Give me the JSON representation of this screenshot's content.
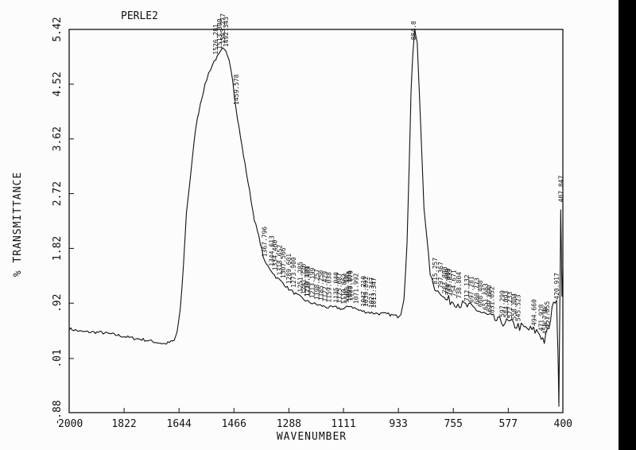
{
  "chart_data": {
    "type": "line",
    "title": "PERLE2",
    "xlabel": "WAVENUMBER",
    "ylabel": "% TRANSMITTANCE",
    "xlim": [
      2000,
      400
    ],
    "ylim": [
      -0.88,
      5.42
    ],
    "x_ticks": [
      "2000",
      "1822",
      "1644",
      "1466",
      "1288",
      "1111",
      "933",
      "755",
      "577",
      "400"
    ],
    "y_ticks": [
      "-.88",
      ".01",
      ".92",
      "1.82",
      "2.72",
      "3.62",
      "4.52",
      "5.42"
    ],
    "series": [
      {
        "x": [
          2000,
          1960,
          1900,
          1850,
          1800,
          1760,
          1720,
          1690,
          1660,
          1650,
          1640,
          1630,
          1620,
          1605,
          1590,
          1575,
          1560,
          1548,
          1530,
          1515,
          1503,
          1492,
          1482,
          1470,
          1459,
          1440,
          1420,
          1400,
          1380,
          1367,
          1344,
          1330,
          1307,
          1288,
          1260,
          1230,
          1200,
          1185,
          1160,
          1135,
          1111,
          1090,
          1060,
          1030,
          1000,
          970,
          950,
          935,
          925,
          915,
          905,
          898,
          892,
          886,
          880,
          872,
          862,
          850,
          830,
          815,
          800,
          780,
          755,
          730,
          700,
          680,
          660,
          640,
          610,
          577,
          550,
          520,
          480,
          460,
          440,
          430,
          420,
          416,
          413,
          409,
          407,
          403,
          400
        ],
        "y": [
          0.5,
          0.45,
          0.44,
          0.4,
          0.35,
          0.32,
          0.28,
          0.25,
          0.3,
          0.45,
          0.8,
          1.5,
          2.4,
          3.1,
          3.8,
          4.2,
          4.5,
          4.7,
          4.9,
          5.0,
          5.1,
          5.05,
          4.95,
          4.6,
          4.1,
          3.5,
          2.9,
          2.3,
          1.9,
          1.6,
          1.45,
          1.35,
          1.25,
          1.15,
          1.05,
          0.95,
          0.9,
          0.88,
          0.85,
          0.85,
          0.82,
          0.88,
          0.8,
          0.77,
          0.75,
          0.74,
          0.72,
          0.7,
          0.75,
          1.0,
          1.9,
          3.2,
          4.4,
          5.05,
          5.4,
          5.2,
          4.0,
          2.5,
          1.4,
          1.15,
          1.1,
          0.98,
          0.95,
          0.9,
          0.85,
          0.82,
          0.75,
          0.7,
          0.62,
          0.6,
          0.55,
          0.5,
          0.45,
          0.3,
          0.6,
          1.0,
          0.9,
          0.2,
          -0.7,
          1.2,
          2.5,
          1.0,
          1.5
        ]
      }
    ],
    "peak_labels": [
      {
        "wn": 1526,
        "text": "1526.281"
      },
      {
        "wn": 1513,
        "text": "1513.300"
      },
      {
        "wn": 1503,
        "text": "1503.277"
      },
      {
        "wn": 1492,
        "text": "1492.343"
      },
      {
        "wn": 1459,
        "text": "1459.578"
      },
      {
        "wn": 1367,
        "text": "1367.796"
      },
      {
        "wn": 1344,
        "text": "1344.613"
      },
      {
        "wn": 1334,
        "text": "1334.460"
      },
      {
        "wn": 1318,
        "text": "1318.652"
      },
      {
        "wn": 1307,
        "text": "1307.566"
      },
      {
        "wn": 1289,
        "text": "1289.601"
      },
      {
        "wn": 1273,
        "text": "1273.900"
      },
      {
        "wn": 1251,
        "text": "1251.285"
      },
      {
        "wn": 1241,
        "text": "1241.726"
      },
      {
        "wn": 1230,
        "text": "1230.101"
      },
      {
        "wn": 1228,
        "text": "1228.480"
      },
      {
        "wn": 1213,
        "text": "1213.199"
      },
      {
        "wn": 1198,
        "text": "1198.257"
      },
      {
        "wn": 1185,
        "text": "1185.250"
      },
      {
        "wn": 1172,
        "text": "1172.429"
      },
      {
        "wn": 1159,
        "text": "1159.038"
      },
      {
        "wn": 1135,
        "text": "1135.040"
      },
      {
        "wn": 1125,
        "text": "1125.687"
      },
      {
        "wn": 1110,
        "text": "1110.862"
      },
      {
        "wn": 1102,
        "text": "1102.375"
      },
      {
        "wn": 1093,
        "text": "1093.104"
      },
      {
        "wn": 1089,
        "text": "1089.070"
      },
      {
        "wn": 1071,
        "text": "1071.992"
      },
      {
        "wn": 1047,
        "text": "1047.210"
      },
      {
        "wn": 1039,
        "text": "1039.892"
      },
      {
        "wn": 1021,
        "text": "1021.347"
      },
      {
        "wn": 1013,
        "text": "1013.347"
      },
      {
        "wn": 884,
        "text": "884.8"
      },
      {
        "wn": 815,
        "text": "815.257"
      },
      {
        "wn": 797,
        "text": "797.367"
      },
      {
        "wn": 783,
        "text": "783.800"
      },
      {
        "wn": 774,
        "text": "774.989"
      },
      {
        "wn": 768,
        "text": "768.039"
      },
      {
        "wn": 754,
        "text": "754.671"
      },
      {
        "wn": 738,
        "text": "738.804"
      },
      {
        "wn": 712,
        "text": "712.132"
      },
      {
        "wn": 697,
        "text": "697.281"
      },
      {
        "wn": 680,
        "text": "680.773"
      },
      {
        "wn": 668,
        "text": "668.488"
      },
      {
        "wn": 651,
        "text": "651.683"
      },
      {
        "wn": 639,
        "text": "639.690"
      },
      {
        "wn": 631,
        "text": "631.652"
      },
      {
        "wn": 597,
        "text": "597.299"
      },
      {
        "wn": 584,
        "text": "584.093"
      },
      {
        "wn": 572,
        "text": "572.233"
      },
      {
        "wn": 558,
        "text": "558.804"
      },
      {
        "wn": 545,
        "text": "545.523"
      },
      {
        "wn": 494,
        "text": "494.660"
      },
      {
        "wn": 471,
        "text": "471.928"
      },
      {
        "wn": 458,
        "text": "458.730"
      },
      {
        "wn": 451,
        "text": "451.855"
      },
      {
        "wn": 420,
        "text": "420.917"
      },
      {
        "wn": 407,
        "text": "407.847"
      }
    ]
  }
}
